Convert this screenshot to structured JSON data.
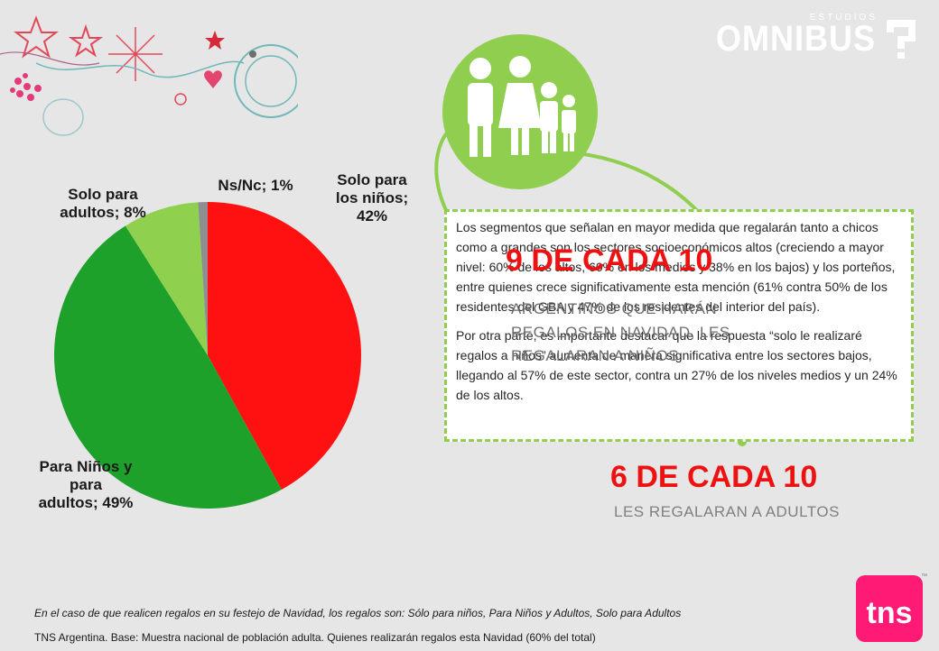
{
  "brand": {
    "small": "ESTUDIOS",
    "big": "OMNIBUS"
  },
  "colors": {
    "red": "#ff1111",
    "green": "#1ea12a",
    "light_green": "#8fd14f",
    "grey": "#8f8f8f",
    "accent_green": "#8fce4e",
    "tns_pink": "#ff1a75"
  },
  "chart_data": {
    "type": "pie",
    "series": [
      {
        "label_lines": [
          "Solo para",
          "los niños;",
          "42%"
        ],
        "value": 42,
        "color": "#ff1111"
      },
      {
        "label_lines": [
          "Para Niños y",
          "para",
          "adultos; 49%"
        ],
        "value": 49,
        "color": "#1ea12a"
      },
      {
        "label_lines": [
          "Solo para",
          "adultos; 8%"
        ],
        "value": 8,
        "color": "#8fd14f"
      },
      {
        "label_lines": [
          "Ns/Nc; 1%"
        ],
        "value": 1,
        "color": "#8f8f8f"
      }
    ]
  },
  "stats": {
    "nine": {
      "headline": "9 DE CADA 10",
      "sub_lines": [
        "ARGENTINOS QUE HARÁN",
        "REGALOS EN NAVIDAD, LES",
        "REGALARAN A NIÑOS"
      ]
    },
    "six": {
      "headline": "6 DE CADA 10",
      "sub": "LES REGALARAN A ADULTOS"
    }
  },
  "infobox": {
    "p1": "Los segmentos que señalan en mayor medida que regalarán tanto a chicos como a grandes son los sectores socioeconómicos altos (creciendo a mayor nivel: 60% de los altos, 60% en los medios y 38% en los bajos) y los porteños, entre quienes crece significativamente esta mención (61% contra 50% de los residentes del GBA y 47% de los residentes del interior del país).",
    "p2": "Por otra parte, es importante destacar que la respuesta “solo le realizaré regalos a niños” aumenta de manera significativa entre los sectores bajos, llegando al 57% de este sector, contra un 27% de los niveles medios y un 24% de los altos."
  },
  "footer": {
    "question": "En el caso de que realicen regalos en su festejo de Navidad, los regalos son: Sólo para niños, Para Niños y Adultos, Solo para Adultos",
    "source": "TNS Argentina. Base: Muestra nacional de población adulta. Quienes realizarán regalos esta Navidad (60% del total)",
    "logo": "tns",
    "trademark": "™"
  }
}
